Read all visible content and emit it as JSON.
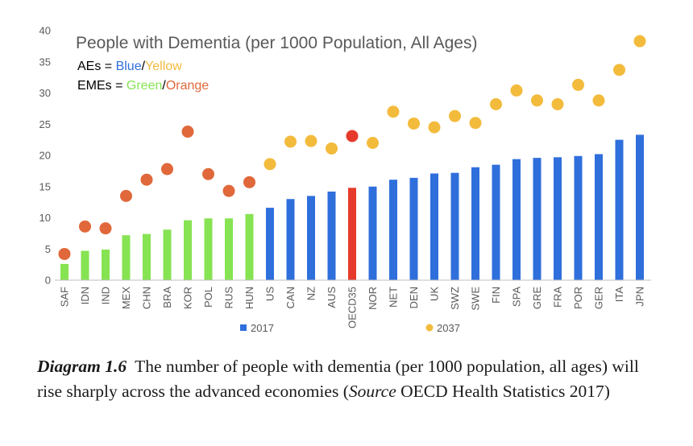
{
  "chart_data": {
    "type": "bar",
    "title": "People with Dementia (per 1000 Population, All Ages)",
    "notes": {
      "line1": {
        "prefix": "AEs = ",
        "a": "Blue",
        "sep": "/",
        "b": "Yellow"
      },
      "line2": {
        "prefix": "EMEs = ",
        "a": "Green",
        "sep": "/",
        "b": "Orange"
      }
    },
    "categories": [
      "SAF",
      "IDN",
      "IND",
      "MEX",
      "CHN",
      "BRA",
      "KOR",
      "POL",
      "RUS",
      "HUN",
      "US",
      "CAN",
      "NZ",
      "AUS",
      "OECD35",
      "NOR",
      "NET",
      "DEN",
      "UK",
      "SWZ",
      "SWE",
      "FIN",
      "SPA",
      "GRE",
      "FRA",
      "POR",
      "GER",
      "ITA",
      "JPN"
    ],
    "groups": [
      "EME",
      "EME",
      "EME",
      "EME",
      "EME",
      "EME",
      "EME",
      "EME",
      "EME",
      "EME",
      "AE",
      "AE",
      "AE",
      "AE",
      "OECD",
      "AE",
      "AE",
      "AE",
      "AE",
      "AE",
      "AE",
      "AE",
      "AE",
      "AE",
      "AE",
      "AE",
      "AE",
      "AE",
      "AE"
    ],
    "series": [
      {
        "name": "2017",
        "kind": "bar",
        "values": [
          2.6,
          4.7,
          4.9,
          7.2,
          7.4,
          8.1,
          9.6,
          9.9,
          9.9,
          10.6,
          11.6,
          13.0,
          13.5,
          14.2,
          14.8,
          15.0,
          16.1,
          16.4,
          17.1,
          17.2,
          18.1,
          18.5,
          19.4,
          19.6,
          19.7,
          19.9,
          20.2,
          22.5,
          23.3
        ]
      },
      {
        "name": "2037",
        "kind": "dot",
        "values": [
          4.2,
          8.6,
          8.3,
          13.5,
          16.1,
          17.8,
          23.8,
          17.0,
          14.3,
          15.7,
          18.6,
          22.2,
          22.3,
          21.1,
          23.1,
          22.0,
          27.0,
          25.1,
          24.5,
          26.3,
          25.2,
          28.2,
          30.4,
          28.8,
          28.2,
          31.3,
          28.8,
          33.7,
          38.3
        ]
      }
    ],
    "ylim": [
      0,
      40
    ],
    "yticks": [
      0,
      5,
      10,
      15,
      20,
      25,
      30,
      35,
      40
    ],
    "grid": false,
    "legend_position": "bottom"
  },
  "colors": {
    "ae_bar": "#2f6fdc",
    "ae_dot": "#f3bb3c",
    "eme_bar": "#86e352",
    "eme_dot": "#e0683a",
    "oecd_bar": "#e63a2c",
    "oecd_dot": "#e63a2c",
    "axis": "#bfbfbf"
  },
  "caption": {
    "label": "Diagram 1.6",
    "text": "The number of people with dementia (per 1000 population, all ages) will rise sharply across the advanced economies (",
    "source_word": "Source",
    "source_text": " OECD Health Statistics 2017)"
  }
}
